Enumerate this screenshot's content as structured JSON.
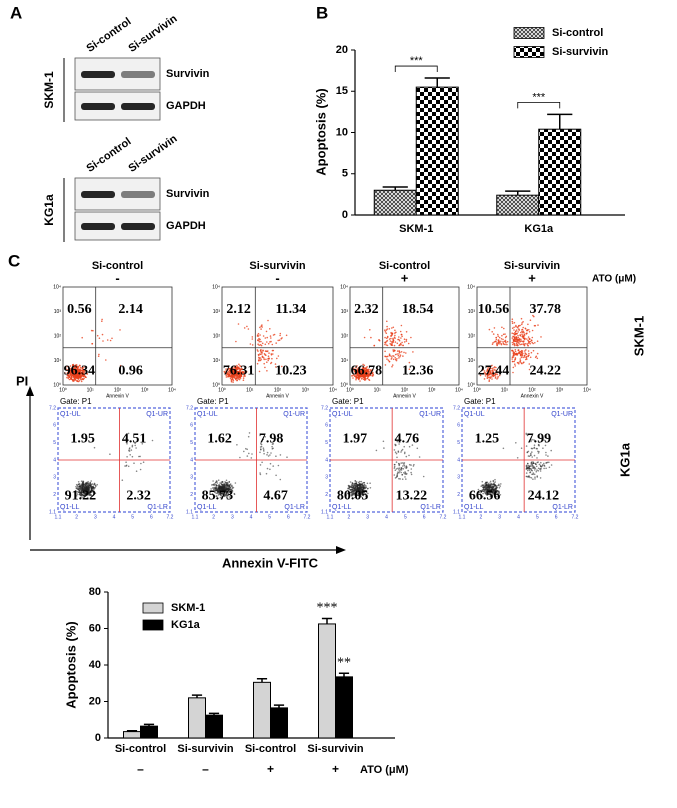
{
  "panel_labels": [
    "A",
    "B",
    "C"
  ],
  "blot": {
    "lanes": [
      "Si-control",
      "Si-survivin"
    ],
    "groups": [
      {
        "cell": "SKM-1",
        "bands": [
          "Survivin",
          "GAPDH"
        ]
      },
      {
        "cell": "KG1a",
        "bands": [
          "Survivin",
          "GAPDH"
        ]
      }
    ]
  },
  "flow": {
    "columns": [
      {
        "label": "Si-control",
        "ato": "-"
      },
      {
        "label": "Si-survivin",
        "ato": "-"
      },
      {
        "label": "Si-control",
        "ato": "+"
      },
      {
        "label": "Si-survivin",
        "ato": "+"
      }
    ],
    "ato_label": "ATO (μM)",
    "y_label": "PI",
    "x_label": "Annexin V-FITC",
    "rows": [
      {
        "cell": "SKM-1",
        "color": "#e8401c",
        "x_title": "Annexin V",
        "ticks": [
          "10⁰",
          "10¹",
          "10²",
          "10³",
          "10⁴"
        ],
        "quadrants": [
          [
            0.56,
            2.14,
            96.34,
            0.96
          ],
          [
            2.12,
            11.34,
            76.31,
            10.23
          ],
          [
            2.32,
            18.54,
            66.78,
            12.36
          ],
          [
            10.56,
            37.78,
            27.44,
            24.22
          ]
        ]
      },
      {
        "cell": "KG1a",
        "color": "#222222",
        "gate": "Gate: P1",
        "quad_labels": [
          "Q1-UL",
          "Q1-UR",
          "Q1-LL",
          "Q1-LR"
        ],
        "ticks": [
          "1.1",
          "2",
          "3",
          "4",
          "5",
          "6",
          "7.2"
        ],
        "quadrants": [
          [
            1.95,
            4.51,
            91.22,
            2.32
          ],
          [
            1.62,
            7.98,
            85.73,
            4.67
          ],
          [
            1.97,
            4.76,
            80.05,
            13.22
          ],
          [
            1.25,
            7.99,
            66.56,
            24.12
          ]
        ]
      }
    ]
  },
  "chart_data": [
    {
      "type": "bar",
      "y_label": "Apoptosis (%)",
      "categories": [
        "SKM-1",
        "KG1a"
      ],
      "series": [
        {
          "name": "Si-control",
          "pattern": "crosshatch",
          "values": [
            3.0,
            2.4
          ],
          "errors": [
            0.4,
            0.5
          ]
        },
        {
          "name": "Si-survivin",
          "pattern": "checker",
          "values": [
            15.5,
            10.4
          ],
          "errors": [
            1.1,
            1.8
          ]
        }
      ],
      "ylim": [
        0,
        20
      ],
      "yticks": [
        0,
        5,
        10,
        15,
        20
      ],
      "annotations": [
        "***",
        "***"
      ]
    },
    {
      "type": "bar",
      "y_label": "Apoptosis (%)",
      "categories": [
        "Si-control",
        "Si-survivin",
        "Si-control",
        "Si-survivin"
      ],
      "subcategories": [
        "–",
        "–",
        "+",
        "+"
      ],
      "subcategory_label": "ATO (μM)",
      "series": [
        {
          "name": "SKM-1",
          "color": "#d4d4d4",
          "values": [
            3.5,
            22,
            30.5,
            62.5
          ],
          "errors": [
            0.5,
            1.5,
            2,
            3
          ]
        },
        {
          "name": "KG1a",
          "color": "#000000",
          "values": [
            6.5,
            12.5,
            16.5,
            33.5
          ],
          "errors": [
            1,
            1,
            1.5,
            2
          ]
        }
      ],
      "ylim": [
        0,
        80
      ],
      "yticks": [
        0,
        20,
        40,
        60,
        80
      ],
      "annotations": [
        "***",
        "**"
      ]
    }
  ]
}
